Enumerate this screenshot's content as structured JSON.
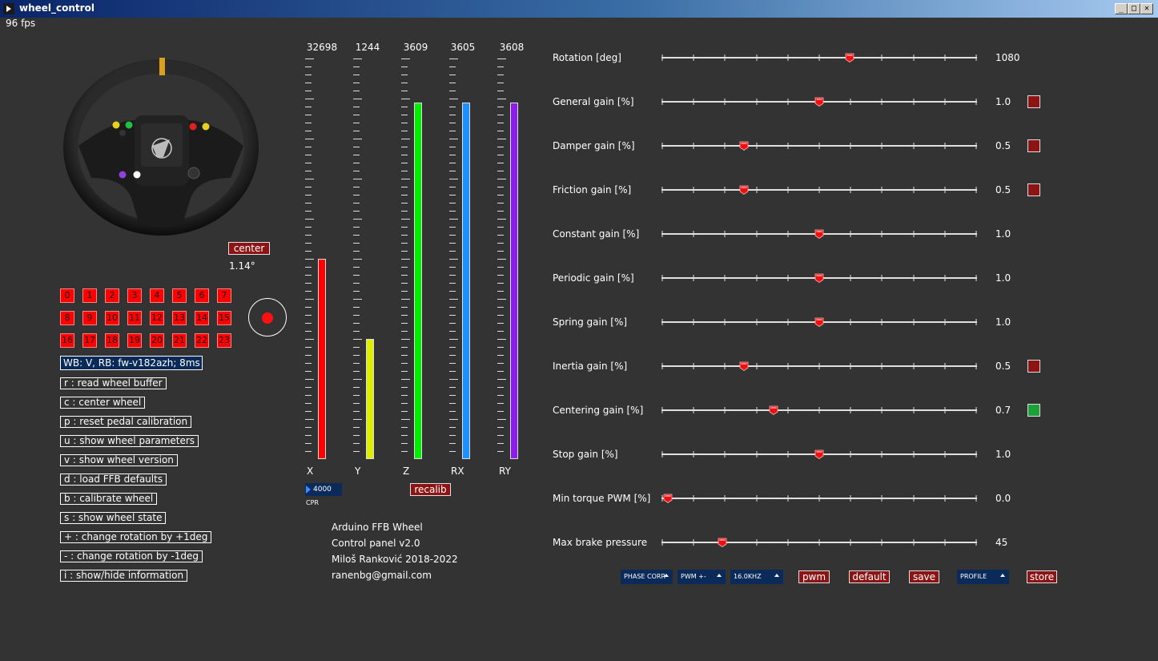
{
  "window": {
    "title": "wheel_control",
    "fps": "96 fps"
  },
  "wheel": {
    "center_label": "center",
    "angle": "1.14°"
  },
  "buttons": [
    "0",
    "1",
    "2",
    "3",
    "4",
    "5",
    "6",
    "7",
    "8",
    "9",
    "10",
    "11",
    "12",
    "13",
    "14",
    "15",
    "16",
    "17",
    "18",
    "19",
    "20",
    "21",
    "22",
    "23"
  ],
  "firmware": "WB: V, RB: fw-v182azh; 8ms",
  "commands": [
    "r : read wheel buffer",
    "c : center wheel",
    "p : reset pedal calibration",
    "u : show wheel parameters",
    "v : show wheel version",
    "d : load FFB defaults",
    "b : calibrate wheel",
    "s : show wheel state",
    "+ : change rotation by +1deg",
    "- : change rotation by -1deg",
    "i : show/hide information"
  ],
  "axes": [
    {
      "label": "X",
      "value": "32698",
      "fill": 0.5,
      "color": "#ff0000"
    },
    {
      "label": "Y",
      "value": "1244",
      "fill": 0.3,
      "color": "#ddee00"
    },
    {
      "label": "Z",
      "value": "3609",
      "fill": 0.89,
      "color": "#00ee00"
    },
    {
      "label": "RX",
      "value": "3605",
      "fill": 0.89,
      "color": "#1e90ff"
    },
    {
      "label": "RY",
      "value": "3608",
      "fill": 0.89,
      "color": "#8a1ee6"
    }
  ],
  "cpr": {
    "value": "4000",
    "label": "CPR"
  },
  "recalib_label": "recalib",
  "info": [
    "Arduino FFB Wheel",
    "Control panel v2.0",
    "Miloš Ranković 2018-2022",
    "ranenbg@gmail.com"
  ],
  "sliders": [
    {
      "label": "Rotation [deg]",
      "value": "1080",
      "position": 0.6,
      "box": null
    },
    {
      "label": "General gain [%]",
      "value": "1.0",
      "position": 0.5,
      "box": "#8c1414"
    },
    {
      "label": "Damper gain [%]",
      "value": "0.5",
      "position": 0.25,
      "box": "#8c1414"
    },
    {
      "label": "Friction gain [%]",
      "value": "0.5",
      "position": 0.25,
      "box": "#8c1414"
    },
    {
      "label": "Constant gain [%]",
      "value": "1.0",
      "position": 0.5,
      "box": null
    },
    {
      "label": "Periodic gain [%]",
      "value": "1.0",
      "position": 0.5,
      "box": null
    },
    {
      "label": "Spring gain [%]",
      "value": "1.0",
      "position": 0.5,
      "box": null
    },
    {
      "label": "Inertia gain [%]",
      "value": "0.5",
      "position": 0.25,
      "box": "#8c1414"
    },
    {
      "label": "Centering gain [%]",
      "value": "0.7",
      "position": 0.35,
      "box": "#1ea03c"
    },
    {
      "label": "Stop gain [%]",
      "value": "1.0",
      "position": 0.5,
      "box": null
    },
    {
      "label": "Min torque PWM [%]",
      "value": "0.0",
      "position": 0.0,
      "box": null
    },
    {
      "label": "Max brake pressure",
      "value": "45",
      "position": 0.18,
      "box": null
    }
  ],
  "bottom": {
    "phase": "PHASE CORR",
    "pwm_mode": "PWM +-",
    "freq": "16.0KHZ",
    "pwm": "pwm",
    "default": "default",
    "save": "save",
    "profile": "PROFILE",
    "store": "store"
  }
}
